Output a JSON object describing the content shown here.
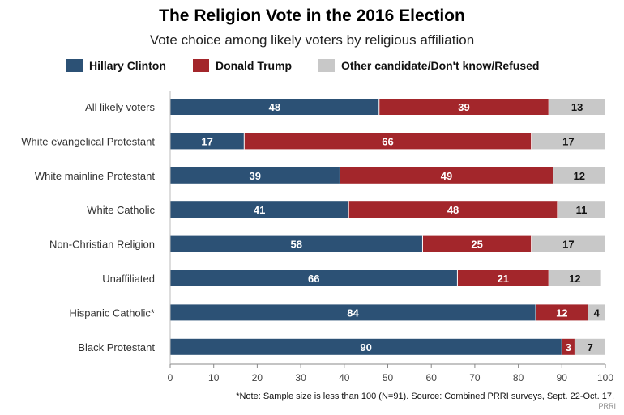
{
  "chart_data": {
    "type": "bar",
    "orientation": "horizontal",
    "stacked": true,
    "title": "The Religion Vote in the 2016 Election",
    "subtitle": "Vote choice among likely voters by religious affiliation",
    "categories": [
      "All likely voters",
      "White evangelical Protestant",
      "White mainline Protestant",
      "White Catholic",
      "Non-Christian Religion",
      "Unaffiliated",
      "Hispanic Catholic*",
      "Black Protestant"
    ],
    "series": [
      {
        "name": "Hillary Clinton",
        "color": "#2c5175",
        "label_color": "#ffffff",
        "values": [
          48,
          17,
          39,
          41,
          58,
          66,
          84,
          90
        ]
      },
      {
        "name": "Donald Trump",
        "color": "#a3262b",
        "label_color": "#ffffff",
        "values": [
          39,
          66,
          49,
          48,
          25,
          21,
          12,
          3
        ]
      },
      {
        "name": "Other candidate/Don't know/Refused",
        "color": "#c8c8c8",
        "label_color": "#111111",
        "values": [
          13,
          17,
          12,
          11,
          17,
          12,
          4,
          7
        ]
      }
    ],
    "xlim": [
      0,
      100
    ],
    "xticks": [
      0,
      10,
      20,
      30,
      40,
      50,
      60,
      70,
      80,
      90,
      100
    ],
    "legend_position": "top",
    "grid": false
  },
  "footnote": "*Note: Sample size is less than 100 (N=91). Source: Combined PRRI surveys, Sept. 22-Oct. 17.",
  "source_mark": "PRRI"
}
